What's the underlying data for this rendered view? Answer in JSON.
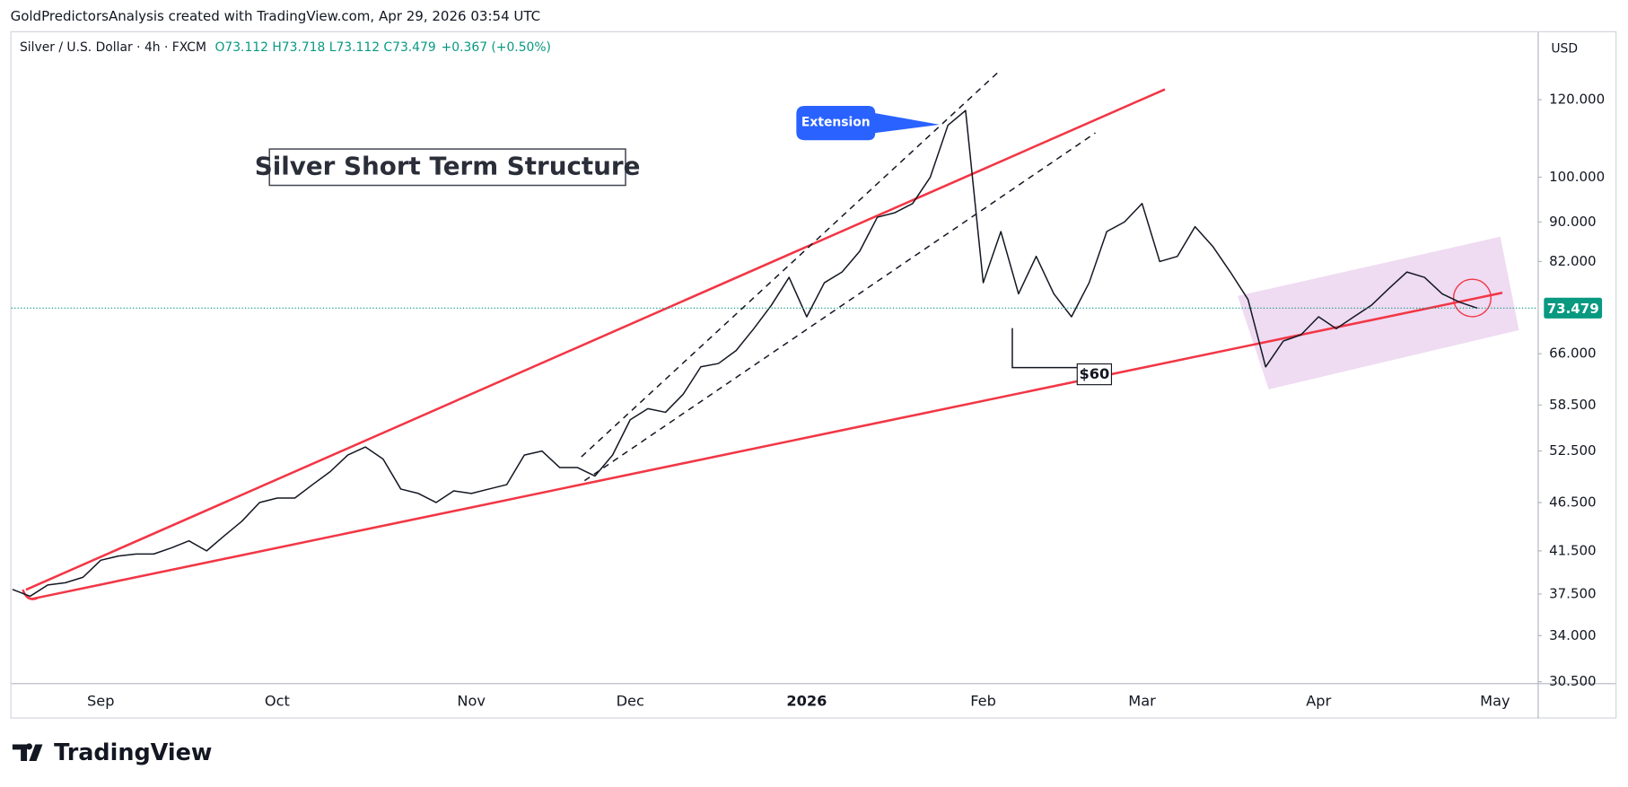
{
  "chart_data": {
    "type": "line",
    "credit": "GoldPredictorsAnalysis created with TradingView.com, Apr 29, 2026 03:54 UTC",
    "symbol": "Silver / U.S. Dollar · 4h · FXCM",
    "ohlc": "O73.112  H73.718  L73.112  C73.479",
    "change": "+0.367 (+0.50%)",
    "currency": "USD",
    "title": "Silver Short Term Structure",
    "annotations": [
      "Extension",
      "$60"
    ],
    "brand": "TradingView",
    "log_scale": true,
    "grid": false,
    "categories": [
      null,
      null,
      null,
      null,
      null,
      "Sep",
      null,
      null,
      null,
      null,
      null,
      null,
      null,
      null,
      null,
      "Oct",
      null,
      null,
      null,
      null,
      null,
      null,
      null,
      null,
      null,
      null,
      "Nov",
      null,
      null,
      null,
      null,
      null,
      null,
      null,
      null,
      "Dec",
      null,
      null,
      null,
      null,
      null,
      null,
      null,
      null,
      null,
      "2026",
      null,
      null,
      null,
      null,
      null,
      null,
      null,
      null,
      null,
      "Feb",
      null,
      null,
      null,
      null,
      null,
      null,
      null,
      null,
      "Mar",
      null,
      null,
      null,
      null,
      null,
      null,
      null,
      null,
      null,
      "Apr",
      null,
      null,
      null,
      null,
      null,
      null,
      null,
      null,
      null,
      "May"
    ],
    "series": [
      {
        "name": "Silver / U.S. Dollar",
        "color": "#131722",
        "values": [
          37.9,
          37.3,
          38.3,
          38.5,
          39.0,
          40.6,
          41.0,
          41.2,
          41.2,
          41.8,
          42.5,
          41.5,
          43.0,
          44.5,
          46.5,
          47.0,
          47.0,
          48.5,
          50.0,
          52.0,
          53.0,
          51.5,
          48.0,
          47.5,
          46.5,
          47.8,
          47.5,
          48.0,
          48.5,
          52.0,
          52.5,
          50.5,
          50.5,
          49.5,
          52.0,
          56.5,
          58.0,
          57.5,
          60.0,
          64.0,
          64.5,
          66.5,
          70.0,
          74.0,
          79.0,
          72.0,
          78.0,
          80.0,
          84.0,
          91.0,
          92.0,
          94.0,
          100.0,
          113.0,
          117.0,
          78.0,
          88.0,
          76.0,
          83.0,
          76.0,
          72.0,
          78.0,
          88.0,
          90.0,
          94.0,
          82.0,
          83.0,
          89.0,
          85.0,
          80.0,
          75.0,
          64.0,
          68.0,
          69.0,
          72.0,
          70.0,
          72.0,
          74.0,
          77.0,
          80.0,
          79.0,
          76.0,
          74.5,
          73.479,
          null
        ]
      }
    ],
    "ylim": [
      30.4,
      141
    ],
    "yticks": [
      {
        "value": 30.5,
        "label": "30.500"
      },
      {
        "value": 34,
        "label": "34.000"
      },
      {
        "value": 37.5,
        "label": "37.500"
      },
      {
        "value": 41.5,
        "label": "41.500"
      },
      {
        "value": 46.5,
        "label": "46.500"
      },
      {
        "value": 52.5,
        "label": "52.500"
      },
      {
        "value": 58.5,
        "label": "58.500"
      },
      {
        "value": 66,
        "label": "66.000"
      },
      {
        "value": 82,
        "label": "82.000"
      },
      {
        "value": 90,
        "label": "90.000"
      },
      {
        "value": 100,
        "label": "100.000"
      },
      {
        "value": 120,
        "label": "120.000"
      }
    ]
  }
}
